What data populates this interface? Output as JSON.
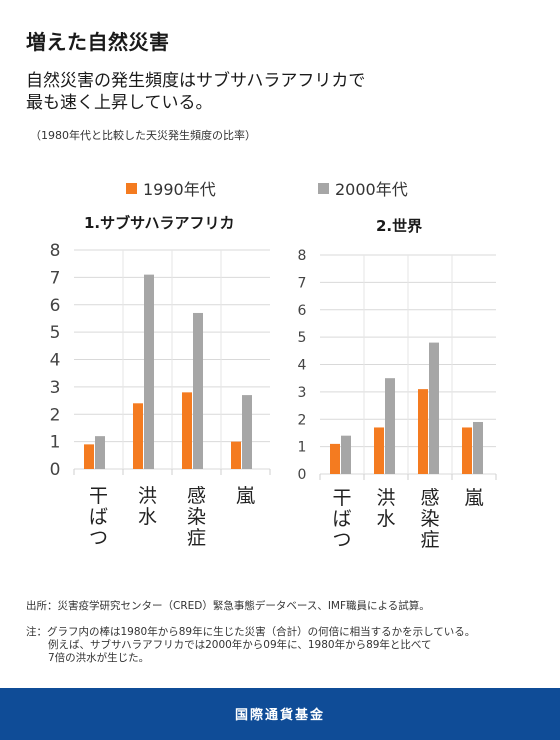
{
  "header": {
    "title": "増えた自然災害",
    "subtitle_line1": "自然災害の発生頻度はサブサハラアフリカで",
    "subtitle_line2": "最も速く上昇している。",
    "note": "（1980年代と比較した天災発生頻度の比率）"
  },
  "colors": {
    "series1": "#f47b20",
    "series2": "#a6a6a6",
    "footer": "#0f4c97"
  },
  "chart_data": [
    {
      "type": "bar",
      "title": "1.サブサハラアフリカ",
      "categories": [
        "干ばつ",
        "洪水",
        "感染症",
        "嵐"
      ],
      "series": [
        {
          "name": "1990年代",
          "values": [
            0.9,
            2.4,
            2.8,
            1.0
          ]
        },
        {
          "name": "2000年代",
          "values": [
            1.2,
            7.1,
            5.7,
            2.7
          ]
        }
      ],
      "yticks": [
        "0",
        "1",
        "2",
        "3",
        "4",
        "5",
        "6",
        "7",
        "8"
      ],
      "ylim": [
        0,
        8
      ],
      "legend": "top"
    },
    {
      "type": "bar",
      "title": "2.世界",
      "categories": [
        "干ばつ",
        "洪水",
        "感染症",
        "嵐"
      ],
      "series": [
        {
          "name": "1990年代",
          "values": [
            1.1,
            1.7,
            3.1,
            1.7
          ]
        },
        {
          "name": "2000年代",
          "values": [
            1.4,
            3.5,
            4.8,
            1.9
          ]
        }
      ],
      "yticks": [
        "0",
        "1",
        "2",
        "3",
        "4",
        "5",
        "6",
        "7",
        "8"
      ],
      "ylim": [
        0,
        8
      ],
      "legend": "top"
    }
  ],
  "footer": {
    "source": "出所：災害疫学研究センター（CRED）緊急事態データベース、IMF職員による試算。",
    "note_line1": "注：グラフ内の棒は1980年から89年に生じた災害（合計）の何倍に相当するかを示している。",
    "note_line2": "例えば、サブサハラアフリカでは2000年から09年に、1980年から89年と比べて",
    "note_line3": "7倍の洪水が生じた。",
    "org": "国際通貨基金"
  }
}
